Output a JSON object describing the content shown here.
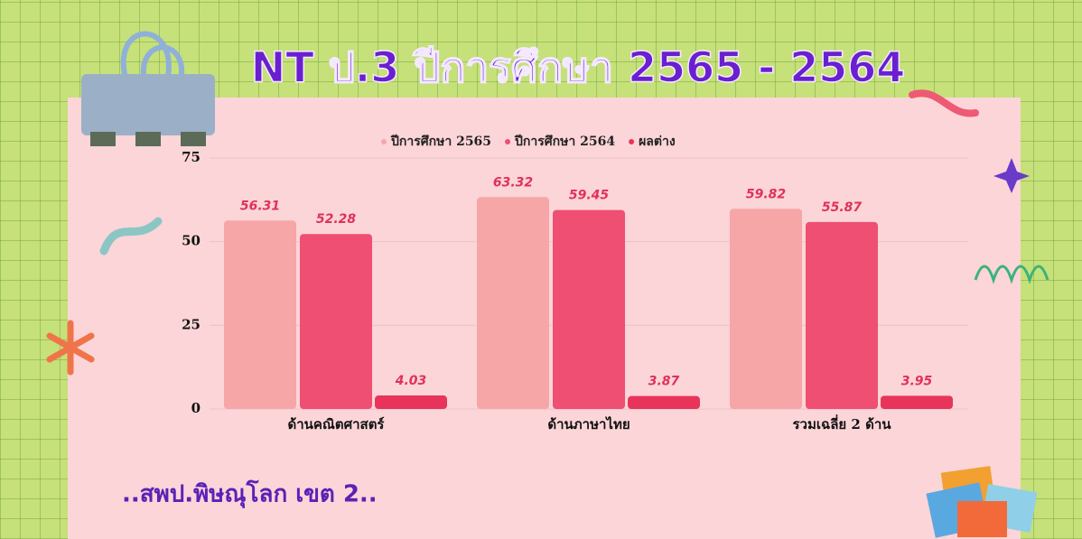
{
  "chart_data": {
    "type": "bar",
    "title": "NT ป.3 ปีการศึกษา 2565 - 2564",
    "subtitle": "..สพป.พิษณุโลก เขต 2..",
    "categories": [
      "ด้านคณิตศาสตร์",
      "ด้านภาษาไทย",
      "รวมเฉลี่ย 2 ด้าน"
    ],
    "series": [
      {
        "name": "ปีการศึกษา 2565",
        "color": "#f7a6a8",
        "values": [
          56.31,
          63.32,
          59.82
        ]
      },
      {
        "name": "ปีการศึกษา 2564",
        "color": "#ef4f72",
        "values": [
          52.28,
          59.45,
          55.87
        ]
      },
      {
        "name": "ผลต่าง",
        "color": "#e8345a",
        "values": [
          4.03,
          3.87,
          3.95
        ]
      }
    ],
    "ylim": [
      0,
      75
    ],
    "yticks": [
      0,
      25,
      50,
      75
    ],
    "grid": true,
    "legend": "top"
  }
}
